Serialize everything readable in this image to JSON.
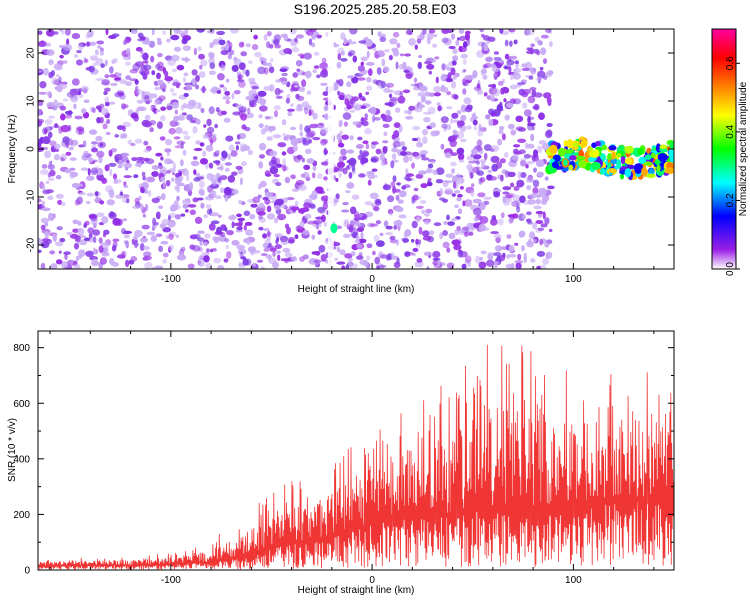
{
  "chart_data": [
    {
      "type": "heatmap",
      "title": "S196.2025.285.20.58.E03",
      "xlabel": "Height of straight line (km)",
      "ylabel": "Frequency (Hz)",
      "xlim": [
        -166,
        150
      ],
      "ylim": [
        -25,
        25
      ],
      "xticks": [
        -100,
        0,
        100
      ],
      "yticks": [
        -20,
        -10,
        0,
        10,
        20
      ],
      "colorbar": {
        "label": "Normalized spectral amplitude",
        "range": [
          0.0,
          0.7
        ],
        "ticks": [
          0.0,
          0.2,
          0.4,
          0.6
        ],
        "tick_labels": [
          "0.0",
          "0.2",
          "0.4",
          "0.6"
        ],
        "colormap": [
          "#ffffff",
          "#9a1fe6",
          "#0000ff",
          "#00ffff",
          "#00ff00",
          "#ffff00",
          "#ff8000",
          "#ff0000",
          "#ff00a0"
        ]
      },
      "features": [
        {
          "description_value": "noise region",
          "x_range": [
            -166,
            89
          ],
          "y_range": [
            -25,
            25
          ],
          "amplitude": 0.08
        },
        {
          "description_value": "signal band",
          "x_range": [
            88,
            150
          ],
          "y_range": [
            -6,
            2
          ],
          "amplitude": 0.35
        },
        {
          "description_value": "spot",
          "x": -19,
          "y": -16.5,
          "amplitude": 0.3
        }
      ]
    },
    {
      "type": "line",
      "xlabel": "Height of straight line (km)",
      "ylabel": "SNR (10 * v/v)",
      "xlim": [
        -166,
        150
      ],
      "ylim": [
        0,
        860
      ],
      "xticks": [
        -100,
        0,
        100
      ],
      "yticks": [
        0,
        200,
        400,
        600,
        800
      ],
      "color": "#f03535",
      "envelope": {
        "x": [
          -166,
          -120,
          -100,
          -90,
          -80,
          -70,
          -60,
          -50,
          -40,
          -30,
          -20,
          -10,
          0,
          10,
          20,
          30,
          40,
          50,
          60,
          70,
          80,
          90,
          100,
          110,
          120,
          130,
          140,
          150
        ],
        "baseline": [
          15,
          18,
          20,
          25,
          30,
          40,
          60,
          80,
          100,
          110,
          130,
          150,
          170,
          190,
          200,
          210,
          200,
          220,
          230,
          200,
          200,
          220,
          240,
          250,
          260,
          260,
          260,
          270
        ],
        "peak": [
          40,
          50,
          60,
          80,
          120,
          150,
          220,
          280,
          330,
          340,
          380,
          450,
          520,
          560,
          620,
          660,
          720,
          780,
          850,
          830,
          820,
          800,
          720,
          760,
          820,
          800,
          750,
          700
        ]
      }
    }
  ]
}
